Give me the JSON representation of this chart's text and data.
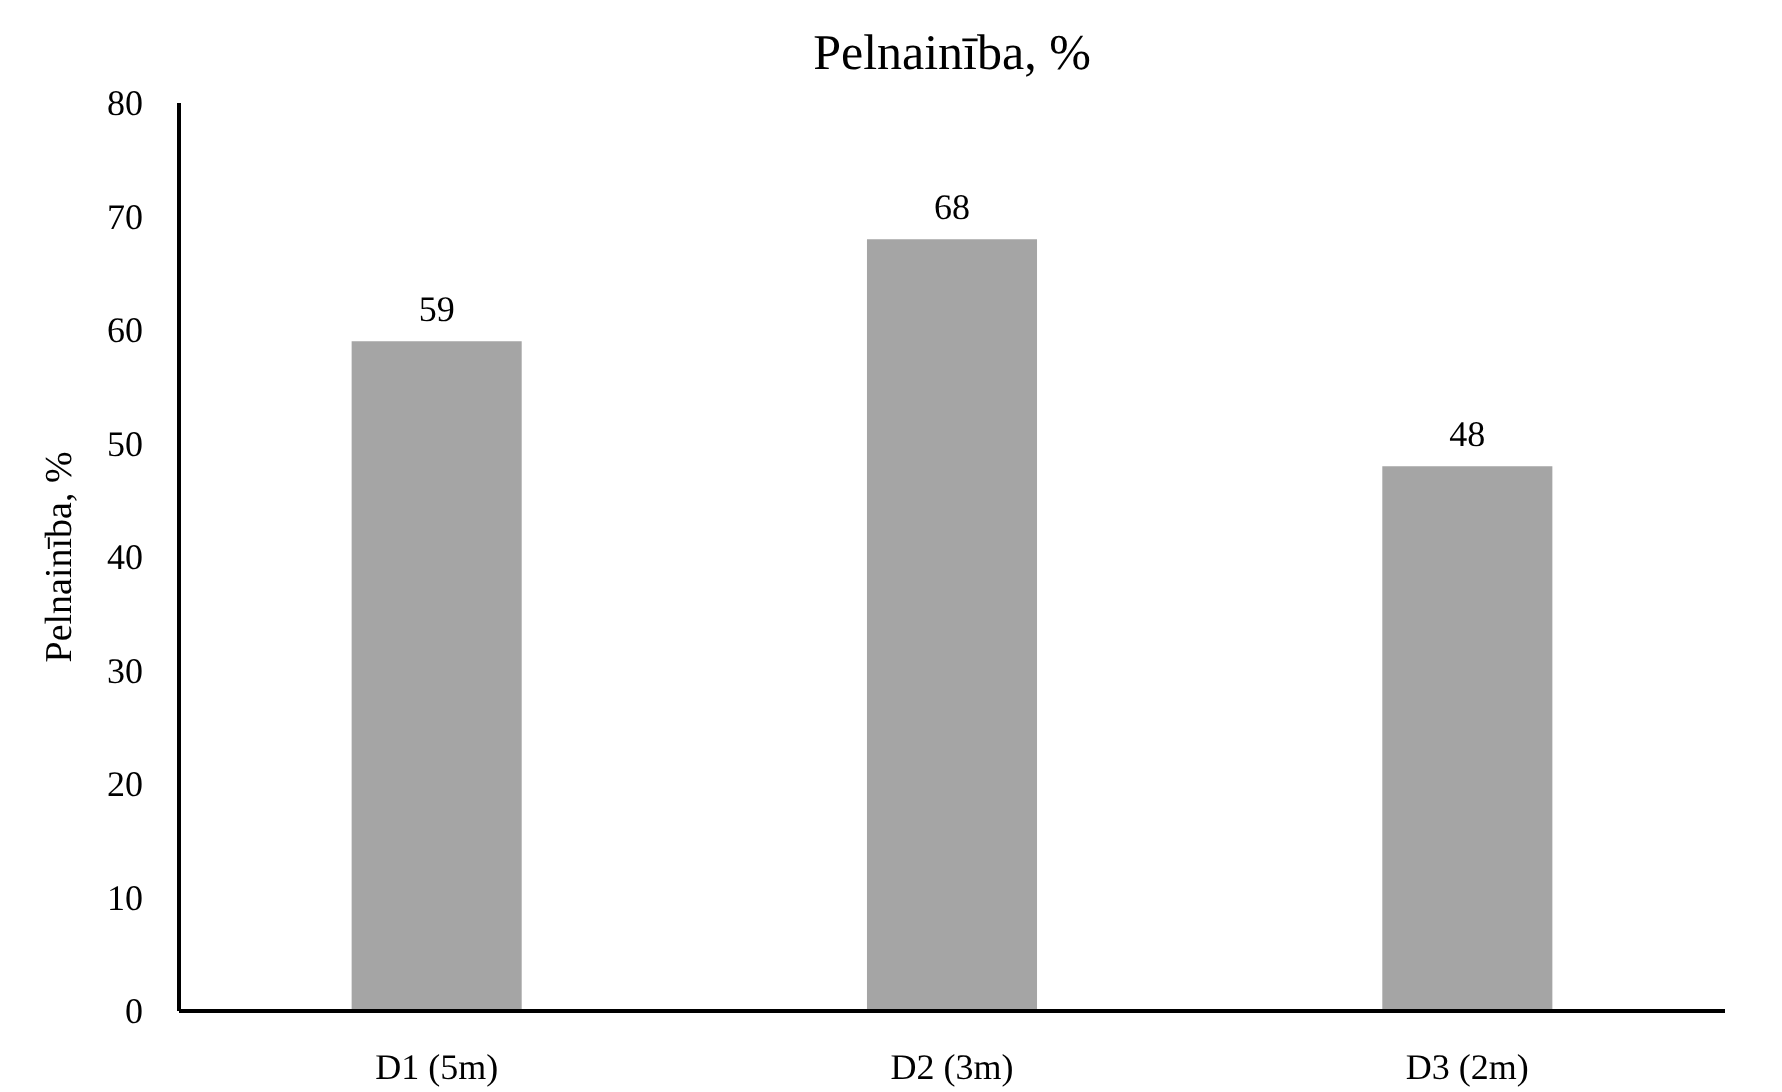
{
  "chart_data": {
    "type": "bar",
    "title": "Pelnainība, %",
    "ylabel": "Pelnainība, %",
    "categories": [
      "D1 (5m)",
      "D2 (3m)",
      "D3 (2m)"
    ],
    "values": [
      59,
      68,
      48
    ],
    "color": "#a5a5a5",
    "ylim": [
      0,
      80
    ],
    "yticks": [
      0,
      10,
      20,
      30,
      40,
      50,
      60,
      70,
      80
    ],
    "grid": false,
    "data_labels": true
  }
}
